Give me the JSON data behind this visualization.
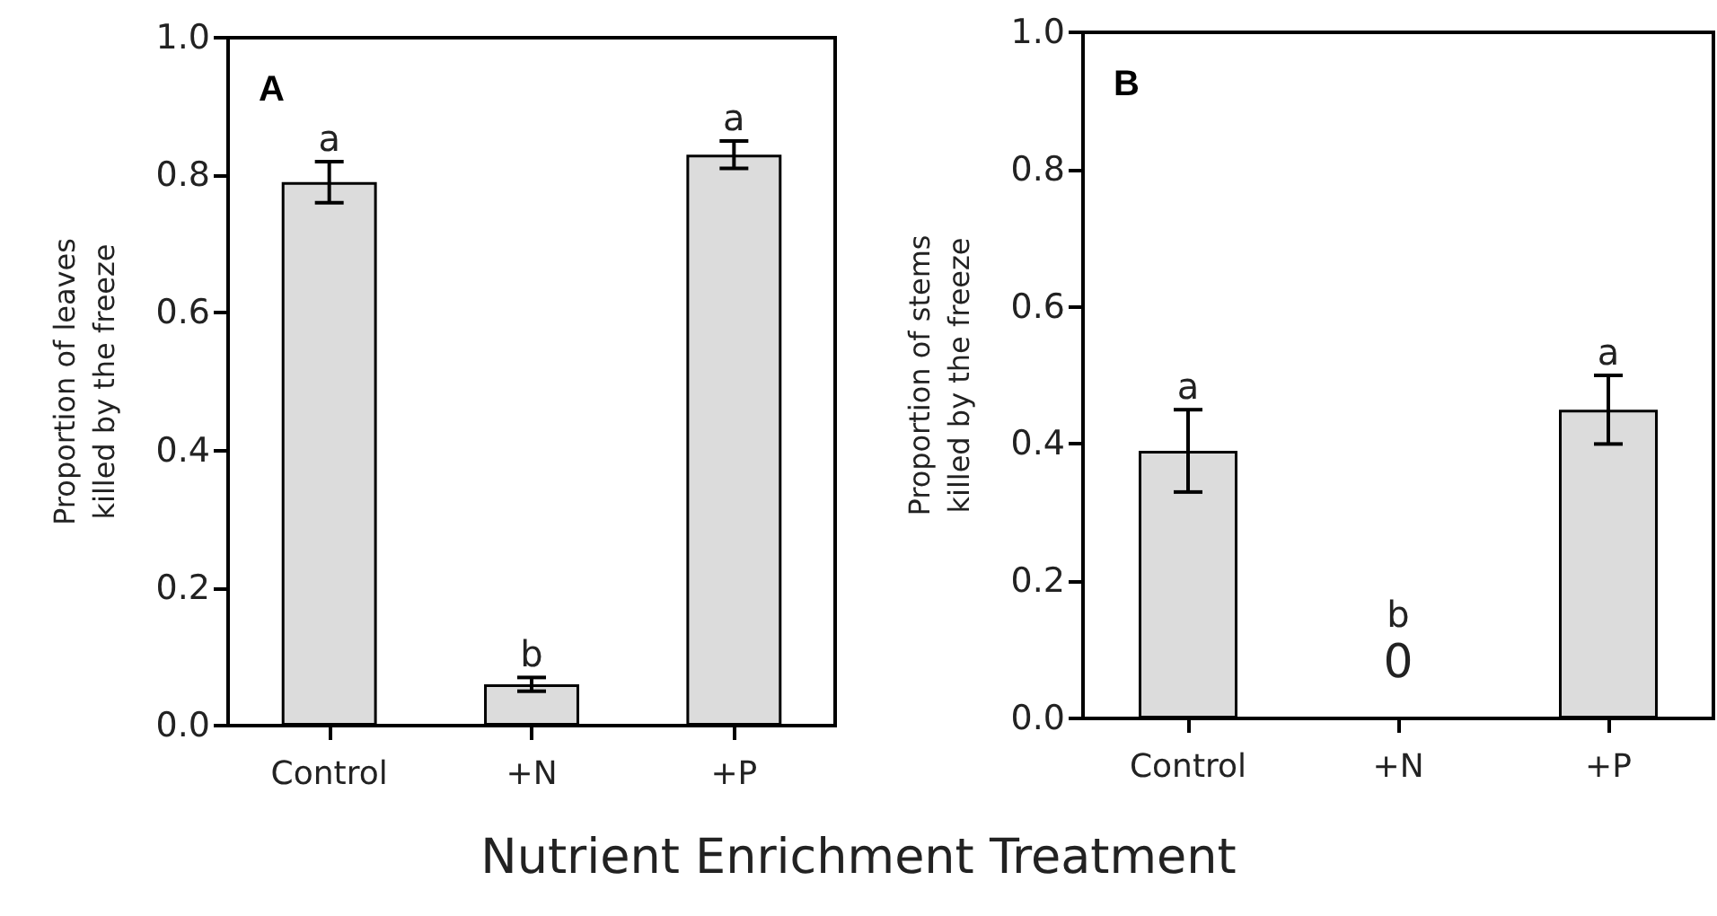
{
  "chart_data": [
    {
      "type": "bar",
      "title": "A",
      "xlabel": "Nutrient Enrichment Treatment",
      "ylabel": "Proportion of leaves\nkilled by the freeze",
      "categories": [
        "Control",
        "+N",
        "+P"
      ],
      "color": "#dcdcdc",
      "values": [
        0.79,
        0.06,
        0.83
      ],
      "errors": [
        [
          0.76,
          0.82
        ],
        [
          0.05,
          0.07
        ],
        [
          0.81,
          0.85
        ]
      ],
      "ylim": [
        0,
        1
      ],
      "yticks": [
        {
          "value": 0,
          "label": "0.0"
        },
        {
          "value": 0.2,
          "label": "0.2"
        },
        {
          "value": 0.4,
          "label": "0.4"
        },
        {
          "value": 0.6,
          "label": "0.6"
        },
        {
          "value": 0.8,
          "label": "0.8"
        },
        {
          "value": 1,
          "label": "1.0"
        }
      ],
      "grid": false,
      "annotations": [
        {
          "text": "a",
          "x": "Control",
          "y": 0.82
        },
        {
          "text": "b",
          "x": "+N",
          "y": 0.07
        },
        {
          "text": "a",
          "x": "+P",
          "y": 0.85
        }
      ]
    },
    {
      "type": "bar",
      "title": "B",
      "ylabel": "Proportion of stems\nkilled by the freeze",
      "categories": [
        "Control",
        "+N",
        "+P"
      ],
      "color": "#dcdcdc",
      "values": [
        0.39,
        0,
        0.45
      ],
      "value_labels": [
        null,
        "0",
        null
      ],
      "errors": [
        [
          0.33,
          0.45
        ],
        null,
        [
          0.4,
          0.5
        ]
      ],
      "ylim": [
        0,
        1
      ],
      "yticks": [
        {
          "value": 0,
          "label": "0.0"
        },
        {
          "value": 0.2,
          "label": "0.2"
        },
        {
          "value": 0.4,
          "label": "0.4"
        },
        {
          "value": 0.6,
          "label": "0.6"
        },
        {
          "value": 0.8,
          "label": "0.8"
        },
        {
          "value": 1,
          "label": "1.0"
        }
      ],
      "grid": false,
      "annotations": [
        {
          "text": "a",
          "x": "Control",
          "y": 0.45
        },
        {
          "text": "b",
          "x": "+N",
          "y": 0
        },
        {
          "text": "a",
          "x": "+P",
          "y": 0.5
        }
      ]
    }
  ]
}
